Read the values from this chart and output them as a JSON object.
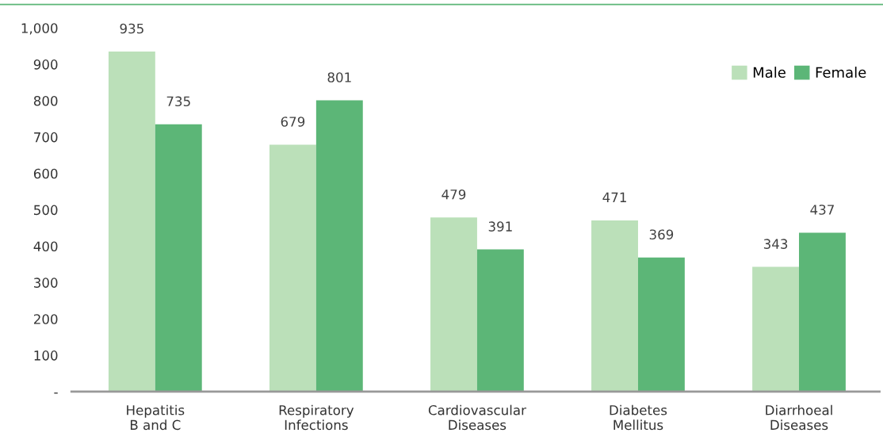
{
  "chart_data": {
    "type": "bar",
    "categories": [
      "Hepatitis\nB and C",
      "Respiratory\nInfections",
      "Cardiovascular\nDiseases",
      "Diabetes\nMellitus",
      "Diarrhoeal\nDiseases"
    ],
    "series": [
      {
        "name": "Male",
        "color": "#bbe0b9",
        "values": [
          935,
          679,
          479,
          471,
          343
        ]
      },
      {
        "name": "Female",
        "color": "#5cb677",
        "values": [
          735,
          801,
          391,
          369,
          437
        ]
      }
    ],
    "ylim": [
      0,
      1000
    ],
    "yticks": [
      {
        "value": 0,
        "label": "-"
      },
      100,
      200,
      300,
      400,
      500,
      600,
      700,
      800,
      900,
      {
        "value": 1000,
        "label": "1,000"
      }
    ],
    "data_labels": true,
    "grid": false,
    "legend": "top right"
  }
}
